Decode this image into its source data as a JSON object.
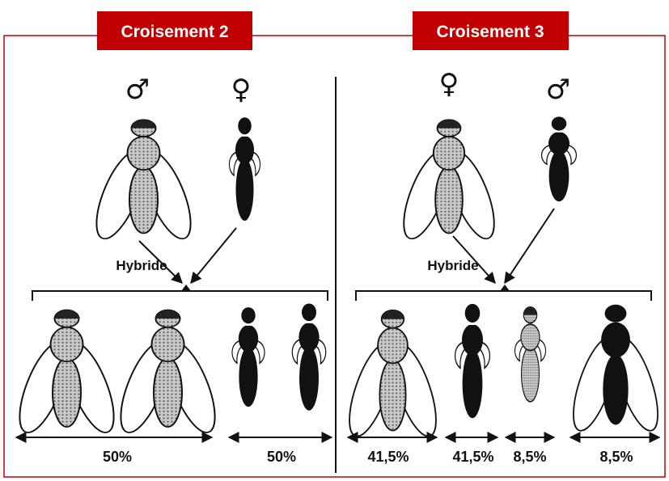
{
  "panels": [
    {
      "title": "Croisement 2",
      "parent_symbols": [
        "♂",
        "♀"
      ],
      "hybrid_label": "Hybride",
      "percentages": [
        "50%",
        "50%"
      ]
    },
    {
      "title": "Croisement 3",
      "parent_symbols": [
        "♀",
        "♂"
      ],
      "hybrid_label": "Hybride",
      "percentages": [
        "41,5%",
        "41,5%",
        "8,5%",
        "8,5%"
      ]
    }
  ]
}
